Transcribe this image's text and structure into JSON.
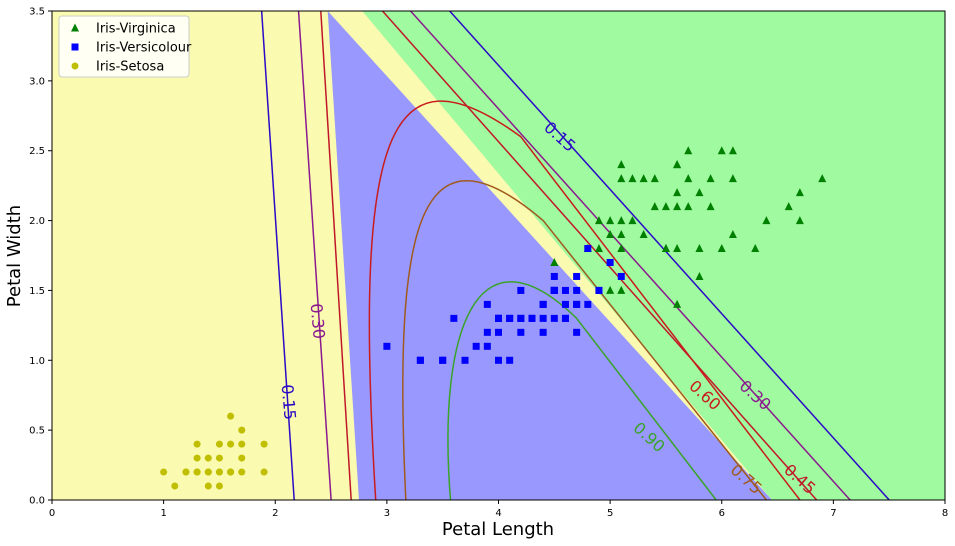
{
  "chart_data": {
    "type": "scatter",
    "title": "",
    "xlabel": "Petal Length",
    "ylabel": "Petal Width",
    "xlim": [
      0,
      8
    ],
    "ylim": [
      0,
      3.5
    ],
    "xticks": [
      "0",
      "1",
      "2",
      "3",
      "4",
      "5",
      "6",
      "7",
      "8"
    ],
    "yticks": [
      "0.0",
      "0.5",
      "1.0",
      "1.5",
      "2.0",
      "2.5",
      "3.0",
      "3.5"
    ],
    "grid": false,
    "legend_position": "top-left",
    "regions": [
      {
        "class": "Iris-Setosa",
        "color": "#fafab0"
      },
      {
        "class": "Iris-Versicolour",
        "color": "#9898ff"
      },
      {
        "class": "Iris-Virginica",
        "color": "#a0faa0"
      }
    ],
    "contours": [
      {
        "level": "0.15",
        "color": "#2a0bc6"
      },
      {
        "level": "0.30",
        "color": "#8b1a8e"
      },
      {
        "level": "0.45",
        "color": "#c0182a"
      },
      {
        "level": "0.60",
        "color": "#c81c1c"
      },
      {
        "level": "0.75",
        "color": "#a05a1e"
      },
      {
        "level": "0.90",
        "color": "#3aa32a"
      }
    ],
    "series": [
      {
        "name": "Iris-Virginica",
        "marker": "triangle",
        "color": "#008000",
        "points": [
          [
            6.0,
            2.5
          ],
          [
            5.1,
            1.9
          ],
          [
            5.9,
            2.1
          ],
          [
            5.6,
            1.8
          ],
          [
            5.8,
            2.2
          ],
          [
            6.6,
            2.1
          ],
          [
            4.5,
            1.7
          ],
          [
            6.3,
            1.8
          ],
          [
            5.8,
            1.8
          ],
          [
            6.1,
            2.5
          ],
          [
            5.1,
            2.0
          ],
          [
            5.3,
            1.9
          ],
          [
            5.5,
            2.1
          ],
          [
            5.0,
            2.0
          ],
          [
            5.1,
            2.4
          ],
          [
            5.3,
            2.3
          ],
          [
            5.5,
            1.8
          ],
          [
            6.7,
            2.2
          ],
          [
            6.9,
            2.3
          ],
          [
            5.0,
            1.5
          ],
          [
            5.7,
            2.3
          ],
          [
            4.9,
            2.0
          ],
          [
            6.7,
            2.0
          ],
          [
            4.9,
            1.8
          ],
          [
            5.7,
            2.1
          ],
          [
            6.0,
            1.8
          ],
          [
            4.8,
            1.8
          ],
          [
            5.6,
            2.1
          ],
          [
            5.8,
            1.6
          ],
          [
            6.1,
            1.9
          ],
          [
            6.4,
            2.0
          ],
          [
            5.6,
            2.2
          ],
          [
            5.1,
            1.5
          ],
          [
            5.6,
            1.4
          ],
          [
            6.1,
            2.3
          ],
          [
            5.6,
            2.4
          ],
          [
            5.5,
            1.8
          ],
          [
            5.4,
            2.1
          ],
          [
            5.6,
            2.4
          ],
          [
            5.1,
            2.3
          ],
          [
            5.9,
            2.3
          ],
          [
            5.7,
            2.5
          ],
          [
            5.2,
            2.3
          ],
          [
            5.0,
            1.9
          ],
          [
            5.2,
            2.0
          ],
          [
            5.4,
            2.3
          ],
          [
            5.1,
            1.8
          ]
        ]
      },
      {
        "name": "Iris-Versicolour",
        "marker": "square",
        "color": "#0000ff",
        "points": [
          [
            4.7,
            1.4
          ],
          [
            4.5,
            1.5
          ],
          [
            4.9,
            1.5
          ],
          [
            4.0,
            1.3
          ],
          [
            4.6,
            1.5
          ],
          [
            4.5,
            1.3
          ],
          [
            4.7,
            1.6
          ],
          [
            3.3,
            1.0
          ],
          [
            4.6,
            1.3
          ],
          [
            3.9,
            1.4
          ],
          [
            3.5,
            1.0
          ],
          [
            4.2,
            1.5
          ],
          [
            4.0,
            1.0
          ],
          [
            4.7,
            1.4
          ],
          [
            3.6,
            1.3
          ],
          [
            4.4,
            1.4
          ],
          [
            4.5,
            1.5
          ],
          [
            4.1,
            1.0
          ],
          [
            4.5,
            1.5
          ],
          [
            3.9,
            1.1
          ],
          [
            4.8,
            1.8
          ],
          [
            4.0,
            1.3
          ],
          [
            4.9,
            1.5
          ],
          [
            4.7,
            1.2
          ],
          [
            4.3,
            1.3
          ],
          [
            4.4,
            1.4
          ],
          [
            4.8,
            1.4
          ],
          [
            5.0,
            1.7
          ],
          [
            4.5,
            1.5
          ],
          [
            3.5,
            1.0
          ],
          [
            3.8,
            1.1
          ],
          [
            3.7,
            1.0
          ],
          [
            3.9,
            1.2
          ],
          [
            5.1,
            1.6
          ],
          [
            4.5,
            1.5
          ],
          [
            4.5,
            1.6
          ],
          [
            4.7,
            1.5
          ],
          [
            4.4,
            1.3
          ],
          [
            4.1,
            1.3
          ],
          [
            4.0,
            1.3
          ],
          [
            4.4,
            1.2
          ],
          [
            4.6,
            1.4
          ],
          [
            4.0,
            1.2
          ],
          [
            3.3,
            1.0
          ],
          [
            4.2,
            1.3
          ],
          [
            4.2,
            1.2
          ],
          [
            4.2,
            1.3
          ],
          [
            4.3,
            1.3
          ],
          [
            3.0,
            1.1
          ],
          [
            4.1,
            1.3
          ],
          [
            4.6,
            1.3
          ]
        ]
      },
      {
        "name": "Iris-Setosa",
        "marker": "circle",
        "color": "#bfbf00",
        "points": [
          [
            1.4,
            0.2
          ],
          [
            1.3,
            0.2
          ],
          [
            1.5,
            0.2
          ],
          [
            1.7,
            0.4
          ],
          [
            1.4,
            0.3
          ],
          [
            1.5,
            0.1
          ],
          [
            1.6,
            0.2
          ],
          [
            1.1,
            0.1
          ],
          [
            1.2,
            0.2
          ],
          [
            1.3,
            0.4
          ],
          [
            1.7,
            0.3
          ],
          [
            1.0,
            0.2
          ],
          [
            1.9,
            0.2
          ],
          [
            1.6,
            0.4
          ],
          [
            1.5,
            0.4
          ],
          [
            1.9,
            0.4
          ],
          [
            1.6,
            0.6
          ],
          [
            1.3,
            0.3
          ],
          [
            1.4,
            0.1
          ],
          [
            1.6,
            0.2
          ],
          [
            1.7,
            0.5
          ],
          [
            1.5,
            0.3
          ],
          [
            1.2,
            0.2
          ],
          [
            1.7,
            0.2
          ],
          [
            1.3,
            0.2
          ],
          [
            1.5,
            0.2
          ],
          [
            1.6,
            0.2
          ],
          [
            1.4,
            0.2
          ]
        ]
      }
    ]
  }
}
